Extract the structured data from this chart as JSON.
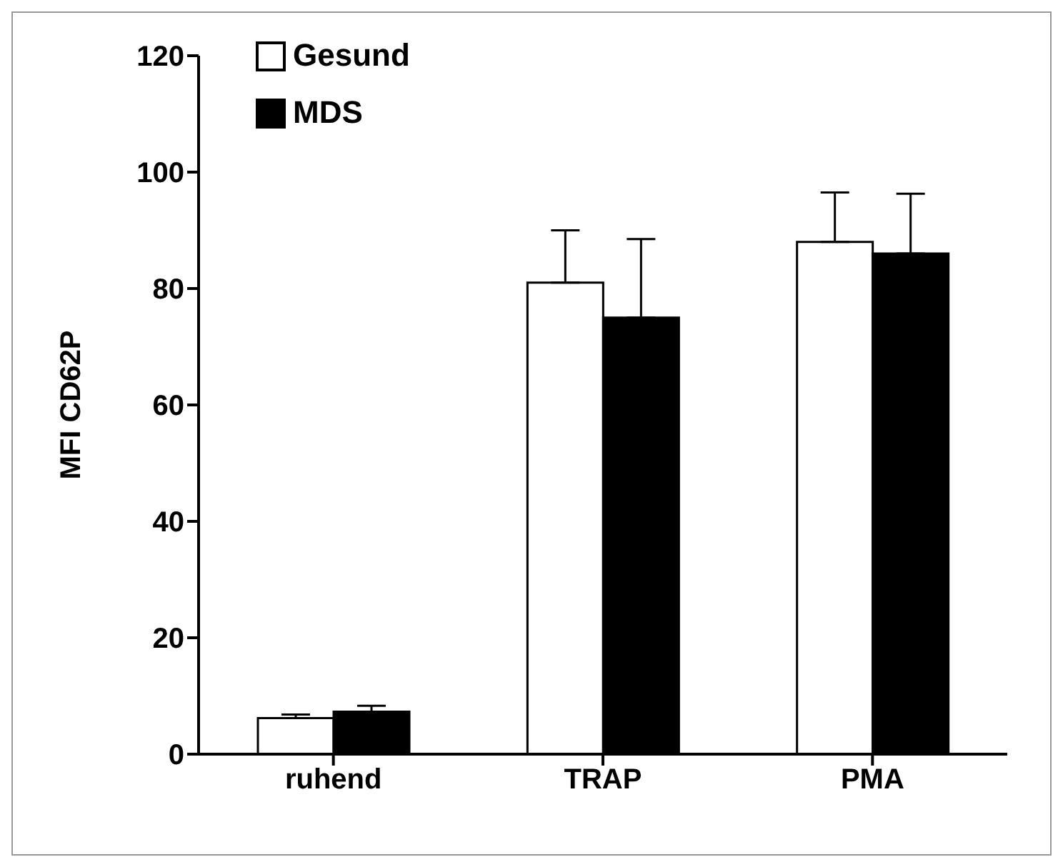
{
  "chart_data": {
    "type": "bar",
    "ylabel": "MFI CD62P",
    "categories": [
      "ruhend",
      "TRAP",
      "PMA"
    ],
    "series": [
      {
        "name": "Gesund",
        "color": "#ffffff",
        "values": [
          6.2,
          81,
          88
        ],
        "errors": [
          [
            6.2,
            6.8
          ],
          [
            81,
            90
          ],
          [
            88,
            96.5
          ]
        ]
      },
      {
        "name": "MDS",
        "color": "#000000",
        "values": [
          7.3,
          75,
          86
        ],
        "errors": [
          [
            7.3,
            8.3
          ],
          [
            75,
            88.5
          ],
          [
            86,
            96.3
          ]
        ]
      }
    ],
    "ylim": [
      0,
      120
    ],
    "yticks": [
      0,
      20,
      40,
      60,
      80,
      100,
      120
    ],
    "grid": false,
    "legend": "top left"
  }
}
